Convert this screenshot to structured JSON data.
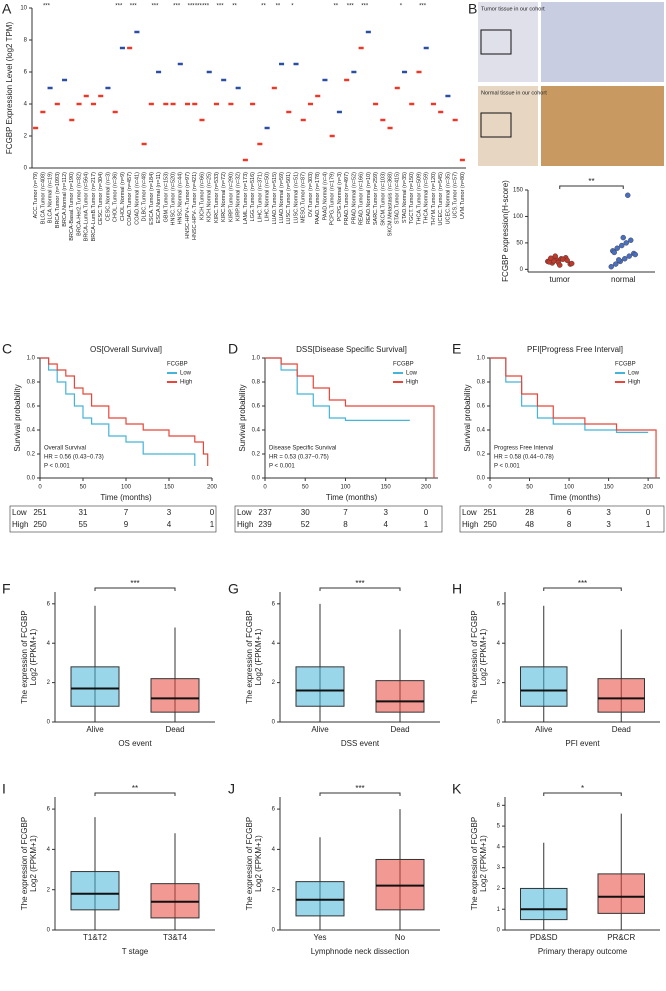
{
  "histology": {
    "label": "B",
    "captions": [
      "Tumor tissue in our cohort",
      "Normal tissue in our cohort"
    ]
  },
  "chart_data": [
    {
      "type": "box",
      "label": "A",
      "ylabel": "FCGBP Expression Level (log2 TPM)",
      "categories": [
        "ACC.Tumor (n=79)",
        "BLCA.Tumor (n=408)",
        "BLCA.Normal (n=19)",
        "BRCA.Tumor (n=1093)",
        "BRCA.Normal (n=112)",
        "BRCA-Basal.Tumor (n=190)",
        "BRCA-Her2.Tumor (n=82)",
        "BRCA-LumA.Tumor (n=564)",
        "BRCA-LumB.Tumor (n=217)",
        "CESC.Tumor (n=304)",
        "CESC.Normal (n=3)",
        "CHOL.Tumor (n=36)",
        "CHOL.Normal (n=9)",
        "COAD.Tumor (n=457)",
        "COAD.Normal (n=41)",
        "DLBC.Tumor (n=48)",
        "ESCA.Tumor (n=184)",
        "ESCA.Normal (n=11)",
        "GBM.Tumor (n=153)",
        "HNSC.Tumor (n=520)",
        "HNSC.Normal (n=44)",
        "HNSC-HPV+.Tumor (n=97)",
        "HNSC-HPV-.Tumor (n=421)",
        "KICH.Tumor (n=66)",
        "KICH.Normal (n=25)",
        "KIRC.Tumor (n=533)",
        "KIRC.Normal (n=72)",
        "KIRP.Tumor (n=290)",
        "KIRP.Normal (n=32)",
        "LAML.Tumor (n=173)",
        "LGG.Tumor (n=516)",
        "LIHC.Tumor (n=371)",
        "LIHC.Normal (n=50)",
        "LUAD.Tumor (n=515)",
        "LUAD.Normal (n=59)",
        "LUSC.Tumor (n=501)",
        "LUSC.Normal (n=51)",
        "MESO.Tumor (n=87)",
        "OV.Tumor (n=303)",
        "PAAD.Tumor (n=178)",
        "PAAD.Normal (n=4)",
        "PCPG.Tumor (n=179)",
        "PCPG.Normal (n=3)",
        "PRAD.Tumor (n=497)",
        "PRAD.Normal (n=52)",
        "READ.Tumor (n=166)",
        "READ.Normal (n=10)",
        "SARC.Tumor (n=259)",
        "SKCM.Tumor (n=103)",
        "SKCM.Metastasis (n=368)",
        "STAD.Tumor (n=415)",
        "STAD.Normal (n=35)",
        "TGCT.Tumor (n=150)",
        "THCA.Tumor (n=509)",
        "THCA.Normal (n=59)",
        "THYM.Tumor (n=120)",
        "UCEC.Tumor (n=545)",
        "UCEC.Normal (n=35)",
        "UCS.Tumor (n=57)",
        "UVM.Tumor (n=80)"
      ],
      "values": [
        2.5,
        3.5,
        5,
        4,
        5.5,
        3,
        4,
        4.5,
        4,
        4.5,
        5,
        3.5,
        7.5,
        7.5,
        8.5,
        1.5,
        4,
        6,
        4,
        4,
        6.5,
        4,
        4,
        3,
        6,
        4,
        5.5,
        4,
        5,
        0.5,
        4,
        1.5,
        2.5,
        5,
        6.5,
        3.5,
        6.5,
        3,
        4,
        4.5,
        5.5,
        2,
        3.5,
        5.5,
        6,
        7.5,
        8.5,
        4,
        3,
        2.5,
        5,
        6,
        4,
        6,
        7.5,
        4,
        3.5,
        4.5,
        3,
        0.5
      ],
      "colors": [
        "#e8392a",
        "#e8392a",
        "#2b4ea2",
        "#e8392a",
        "#2b4ea2",
        "#e8392a",
        "#e8392a",
        "#e8392a",
        "#e8392a",
        "#e8392a",
        "#2b4ea2",
        "#e8392a",
        "#2b4ea2",
        "#e8392a",
        "#2b4ea2",
        "#e8392a",
        "#e8392a",
        "#2b4ea2",
        "#e8392a",
        "#e8392a",
        "#2b4ea2",
        "#e8392a",
        "#e8392a",
        "#e8392a",
        "#2b4ea2",
        "#e8392a",
        "#2b4ea2",
        "#e8392a",
        "#2b4ea2",
        "#e8392a",
        "#e8392a",
        "#e8392a",
        "#2b4ea2",
        "#e8392a",
        "#2b4ea2",
        "#e8392a",
        "#2b4ea2",
        "#e8392a",
        "#e8392a",
        "#e8392a",
        "#2b4ea2",
        "#e8392a",
        "#2b4ea2",
        "#e8392a",
        "#2b4ea2",
        "#e8392a",
        "#2b4ea2",
        "#e8392a",
        "#e8392a",
        "#e8392a",
        "#e8392a",
        "#2b4ea2",
        "#e8392a",
        "#e8392a",
        "#2b4ea2",
        "#e8392a",
        "#e8392a",
        "#2b4ea2",
        "#e8392a",
        "#e8392a"
      ],
      "significance": [
        null,
        "***",
        null,
        null,
        null,
        null,
        null,
        null,
        null,
        null,
        null,
        "***",
        null,
        "***",
        null,
        null,
        "***",
        null,
        null,
        "***",
        null,
        "***",
        "***",
        "***",
        null,
        "***",
        null,
        "**",
        null,
        null,
        null,
        "**",
        null,
        "**",
        null,
        "*",
        null,
        null,
        null,
        null,
        null,
        "**",
        null,
        "***",
        null,
        "***",
        null,
        null,
        null,
        null,
        "*",
        null,
        null,
        "***",
        null,
        null,
        null,
        null,
        null,
        null
      ],
      "highlighted": [
        19,
        20
      ],
      "highlight_color": "#e8392a",
      "ylim": [
        0,
        10
      ],
      "yticks": [
        0,
        2,
        4,
        6,
        8,
        10
      ]
    },
    {
      "type": "violin",
      "ylabel": "FCGBP expression(H-score)",
      "categories": [
        "tumor",
        "normal"
      ],
      "values": [
        [
          15,
          12,
          18,
          20,
          22,
          10,
          14,
          16,
          13,
          19,
          17,
          11,
          21,
          25,
          8
        ],
        [
          5,
          10,
          15,
          20,
          25,
          30,
          35,
          40,
          45,
          50,
          55,
          28,
          32,
          18,
          60,
          140
        ]
      ],
      "colors": [
        "#c0392b",
        "#4a6fc1"
      ],
      "significance": "**",
      "ylim": [
        -5,
        150
      ],
      "yticks": [
        0,
        50,
        100,
        150
      ]
    },
    {
      "type": "km",
      "label": "C",
      "title": "OS[Overall Survival]",
      "xlabel": "Time (months)",
      "ylabel": "Survival probability",
      "legend_title": "FCGBP",
      "annotations": [
        "Overall Survival",
        "HR = 0.56 (0.43−0.73)",
        "P < 0.001"
      ],
      "series": [
        {
          "name": "Low",
          "color": "#45b4d8",
          "x": [
            0,
            10,
            20,
            30,
            40,
            50,
            60,
            80,
            100,
            120,
            150,
            180
          ],
          "values": [
            1,
            0.9,
            0.8,
            0.7,
            0.6,
            0.5,
            0.45,
            0.35,
            0.3,
            0.2,
            0.2,
            0.1
          ],
          "at_risk": [
            251,
            31,
            7,
            3,
            0
          ]
        },
        {
          "name": "High",
          "color": "#e8463a",
          "x": [
            0,
            10,
            20,
            30,
            40,
            50,
            60,
            80,
            100,
            120,
            150,
            180,
            190,
            195
          ],
          "values": [
            1,
            0.95,
            0.9,
            0.85,
            0.75,
            0.7,
            0.6,
            0.5,
            0.45,
            0.4,
            0.35,
            0.3,
            0.2,
            0.1
          ],
          "at_risk": [
            250,
            55,
            9,
            4,
            1
          ]
        }
      ],
      "xlim": [
        0,
        200
      ],
      "xticks": [
        0,
        50,
        100,
        150,
        200
      ],
      "ylim": [
        0,
        1
      ],
      "yticks": [
        {
          "value": 0,
          "label": "0.0"
        },
        {
          "value": 0.2,
          "label": "0.2"
        },
        {
          "value": 0.4,
          "label": "0.4"
        },
        {
          "value": 0.6,
          "label": "0.6"
        },
        {
          "value": 0.8,
          "label": "0.8"
        },
        {
          "value": 1,
          "label": "1.0"
        }
      ]
    },
    {
      "type": "km",
      "label": "D",
      "title": "DSS[Disease Specific Survival]",
      "xlabel": "Time (months)",
      "ylabel": "Survival probability",
      "legend_title": "FCGBP",
      "annotations": [
        "Disease Specific Survival",
        "HR = 0.53 (0.37−0.75)",
        "P < 0.001"
      ],
      "series": [
        {
          "name": "Low",
          "color": "#45b4d8",
          "x": [
            0,
            20,
            40,
            60,
            80,
            100,
            150,
            180
          ],
          "values": [
            1,
            0.9,
            0.7,
            0.6,
            0.5,
            0.48,
            0.48,
            0.48
          ],
          "at_risk": [
            237,
            30,
            7,
            3,
            0
          ]
        },
        {
          "name": "High",
          "color": "#e8463a",
          "x": [
            0,
            20,
            40,
            60,
            80,
            100,
            150,
            205,
            210
          ],
          "values": [
            1,
            0.95,
            0.85,
            0.75,
            0.65,
            0.6,
            0.6,
            0.6,
            0
          ],
          "at_risk": [
            239,
            52,
            8,
            4,
            1
          ]
        }
      ],
      "xlim": [
        0,
        215
      ],
      "xticks": [
        0,
        50,
        100,
        150,
        200
      ],
      "ylim": [
        0,
        1
      ],
      "yticks": [
        {
          "value": 0,
          "label": "0.0"
        },
        {
          "value": 0.2,
          "label": "0.2"
        },
        {
          "value": 0.4,
          "label": "0.4"
        },
        {
          "value": 0.6,
          "label": "0.6"
        },
        {
          "value": 0.8,
          "label": "0.8"
        },
        {
          "value": 1,
          "label": "1.0"
        }
      ]
    },
    {
      "type": "km",
      "label": "E",
      "title": "PFI[Progress Free Interval]",
      "xlabel": "Time (months)",
      "ylabel": "Survival probability",
      "legend_title": "FCGBP",
      "annotations": [
        "Progress Free Interval",
        "HR = 0.58 (0.44−0.78)",
        "P < 0.001"
      ],
      "series": [
        {
          "name": "Low",
          "color": "#45b4d8",
          "x": [
            0,
            20,
            40,
            60,
            80,
            120,
            160,
            200
          ],
          "values": [
            1,
            0.8,
            0.6,
            0.5,
            0.45,
            0.4,
            0.38,
            0.38
          ],
          "at_risk": [
            251,
            28,
            6,
            3,
            0
          ]
        },
        {
          "name": "High",
          "color": "#e8463a",
          "x": [
            0,
            20,
            40,
            60,
            80,
            120,
            160,
            205,
            210
          ],
          "values": [
            1,
            0.85,
            0.7,
            0.6,
            0.5,
            0.45,
            0.4,
            0.4,
            0
          ],
          "at_risk": [
            250,
            48,
            8,
            3,
            1
          ]
        }
      ],
      "xlim": [
        0,
        215
      ],
      "xticks": [
        0,
        50,
        100,
        150,
        200
      ],
      "ylim": [
        0,
        1
      ],
      "yticks": [
        {
          "value": 0,
          "label": "0.0"
        },
        {
          "value": 0.2,
          "label": "0.2"
        },
        {
          "value": 0.4,
          "label": "0.4"
        },
        {
          "value": 0.6,
          "label": "0.6"
        },
        {
          "value": 0.8,
          "label": "0.8"
        },
        {
          "value": 1,
          "label": "1.0"
        }
      ]
    },
    {
      "type": "box",
      "label": "F",
      "xlabel": "OS event",
      "ylabel": [
        "The expression of FCGBP",
        "Log2 (FPKM+1)"
      ],
      "categories": [
        "Alive",
        "Dead"
      ],
      "median": [
        1.7,
        1.2
      ],
      "q1": [
        0.8,
        0.5
      ],
      "q3": [
        2.8,
        2.2
      ],
      "whisker_low": [
        0,
        0
      ],
      "whisker_high": [
        5.9,
        4.8
      ],
      "colors": [
        "#45b4d8",
        "#e8463a"
      ],
      "significance": "***",
      "ylim": [
        0,
        6.6
      ],
      "yticks": [
        0,
        2,
        4,
        6
      ]
    },
    {
      "type": "box",
      "label": "G",
      "xlabel": "DSS event",
      "ylabel": [
        "The expression of FCGBP",
        "Log2 (FPKM+1)"
      ],
      "categories": [
        "Alive",
        "Dead"
      ],
      "median": [
        1.6,
        1.05
      ],
      "q1": [
        0.8,
        0.5
      ],
      "q3": [
        2.8,
        2.1
      ],
      "whisker_low": [
        0,
        0
      ],
      "whisker_high": [
        6,
        4.7
      ],
      "colors": [
        "#45b4d8",
        "#e8463a"
      ],
      "significance": "***",
      "ylim": [
        0,
        6.6
      ],
      "yticks": [
        0,
        2,
        4,
        6
      ]
    },
    {
      "type": "box",
      "label": "H",
      "xlabel": "PFI event",
      "ylabel": [
        "The expression of FCGBP",
        "Log2 (FPKM+1)"
      ],
      "categories": [
        "Alive",
        "Dead"
      ],
      "median": [
        1.6,
        1.2
      ],
      "q1": [
        0.8,
        0.5
      ],
      "q3": [
        2.8,
        2.2
      ],
      "whisker_low": [
        0,
        0
      ],
      "whisker_high": [
        5.9,
        4.7
      ],
      "colors": [
        "#45b4d8",
        "#e8463a"
      ],
      "significance": "***",
      "ylim": [
        0,
        6.6
      ],
      "yticks": [
        0,
        2,
        4,
        6
      ]
    },
    {
      "type": "box",
      "label": "I",
      "xlabel": "T stage",
      "ylabel": [
        "The expression of FCGBP",
        "Log2 (FPKM+1)"
      ],
      "categories": [
        "T1&T2",
        "T3&T4"
      ],
      "median": [
        1.8,
        1.4
      ],
      "q1": [
        1.0,
        0.6
      ],
      "q3": [
        2.9,
        2.3
      ],
      "whisker_low": [
        0,
        0
      ],
      "whisker_high": [
        5.6,
        4.8
      ],
      "colors": [
        "#45b4d8",
        "#e8463a"
      ],
      "significance": "**",
      "ylim": [
        0,
        6.6
      ],
      "yticks": [
        0,
        2,
        4,
        6
      ]
    },
    {
      "type": "box",
      "label": "J",
      "xlabel": "Lymphnode neck dissection",
      "ylabel": [
        "The expression of FCGBP",
        "Log2 (FPKM+1)"
      ],
      "categories": [
        "Yes",
        "No"
      ],
      "median": [
        1.5,
        2.2
      ],
      "q1": [
        0.7,
        1.0
      ],
      "q3": [
        2.4,
        3.5
      ],
      "whisker_low": [
        0,
        0
      ],
      "whisker_high": [
        4.6,
        6
      ],
      "colors": [
        "#45b4d8",
        "#e8463a"
      ],
      "significance": "***",
      "ylim": [
        0,
        6.6
      ],
      "yticks": [
        0,
        2,
        4,
        6
      ]
    },
    {
      "type": "box",
      "label": "K",
      "xlabel": "Primary therapy outcome",
      "ylabel": [
        "The expression of FCGBP",
        "Log2 (FPKM+1)"
      ],
      "categories": [
        "PD&SD",
        "PR&CR"
      ],
      "median": [
        1.0,
        1.6
      ],
      "q1": [
        0.5,
        0.8
      ],
      "q3": [
        2.0,
        2.7
      ],
      "whisker_low": [
        0,
        0
      ],
      "whisker_high": [
        4.2,
        5.6
      ],
      "colors": [
        "#45b4d8",
        "#e8463a"
      ],
      "significance": "*",
      "ylim": [
        0,
        6.4
      ],
      "yticks": [
        0,
        1,
        2,
        3,
        4,
        5,
        6
      ]
    }
  ]
}
